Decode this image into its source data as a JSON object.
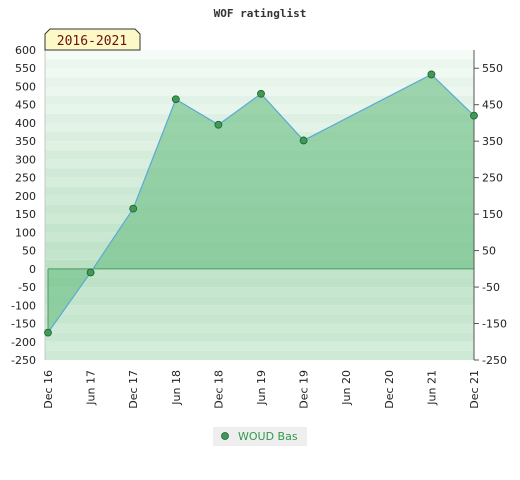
{
  "chart_data": {
    "type": "area",
    "title": "WOF ratinglist",
    "period_badge": "2016-2021",
    "categories": [
      "Dec 16",
      "Jun 17",
      "Dec 17",
      "Jun 18",
      "Dec 18",
      "Jun 19",
      "Dec 19",
      "Jun 20",
      "Dec 20",
      "Jun 21",
      "Dec 21"
    ],
    "series": [
      {
        "name": "WOUD Bas",
        "points": [
          {
            "x": "Dec 16",
            "y": -175
          },
          {
            "x": "Jun 17",
            "y": -10
          },
          {
            "x": "Dec 17",
            "y": 165
          },
          {
            "x": "Jun 18",
            "y": 465
          },
          {
            "x": "Dec 18",
            "y": 395
          },
          {
            "x": "Jun 19",
            "y": 480
          },
          {
            "x": "Dec 19",
            "y": 352
          },
          {
            "x": "Jun 21",
            "y": 533
          },
          {
            "x": "Dec 21",
            "y": 420
          }
        ]
      }
    ],
    "y_left_ticks": [
      "600",
      "550",
      "500",
      "450",
      "400",
      "350",
      "300",
      "250",
      "200",
      "150",
      "100",
      "50",
      "0",
      "-50",
      "-100",
      "-150",
      "-200",
      "-250"
    ],
    "y_right_ticks": [
      "550",
      "450",
      "350",
      "250",
      "150",
      "50",
      "-50",
      "-150",
      "-250"
    ],
    "ylim": [
      -250,
      600
    ],
    "baseline": 0,
    "legend_position": "bottom-center",
    "colors": {
      "fill": "#6cbf84",
      "line": "#5aa9d6",
      "marker": "#3f9a55",
      "band_dark": "#9fd3ae",
      "band_light": "#e8f5ec",
      "badge_bg": "#fdf9c6",
      "legend_text": "#2e9a4a"
    }
  }
}
